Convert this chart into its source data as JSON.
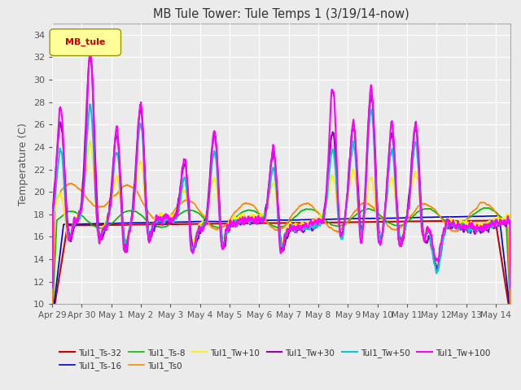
{
  "title": "MB Tule Tower: Tule Temps 1 (3/19/14-now)",
  "ylabel": "Temperature (C)",
  "xlim_days": [
    0,
    15.5
  ],
  "ylim": [
    10,
    35
  ],
  "yticks": [
    10,
    12,
    14,
    16,
    18,
    20,
    22,
    24,
    26,
    28,
    30,
    32,
    34
  ],
  "xtick_labels": [
    "Apr 29",
    "Apr 30",
    "May 1",
    "May 2",
    "May 3",
    "May 4",
    "May 5",
    "May 6",
    "May 7",
    "May 8",
    "May 9",
    "May 10",
    "May 11",
    "May 12",
    "May 13",
    "May 14"
  ],
  "bg_color": "#ebebeb",
  "legend_box_color": "#ffff99",
  "legend_box_text": "MB_tule",
  "series": {
    "Tul1_Ts-32": {
      "color": "#cc0000",
      "lw": 1.5
    },
    "Tul1_Ts-16": {
      "color": "#0000cc",
      "lw": 1.2
    },
    "Tul1_Ts-8": {
      "color": "#00bb00",
      "lw": 1.2
    },
    "Tul1_Ts0": {
      "color": "#ff8800",
      "lw": 1.2
    },
    "Tul1_Tw+10": {
      "color": "#ffee00",
      "lw": 1.2
    },
    "Tul1_Tw+30": {
      "color": "#9900bb",
      "lw": 1.5
    },
    "Tul1_Tw+50": {
      "color": "#00cccc",
      "lw": 1.5
    },
    "Tul1_Tw+100": {
      "color": "#ff00ff",
      "lw": 1.5
    }
  }
}
